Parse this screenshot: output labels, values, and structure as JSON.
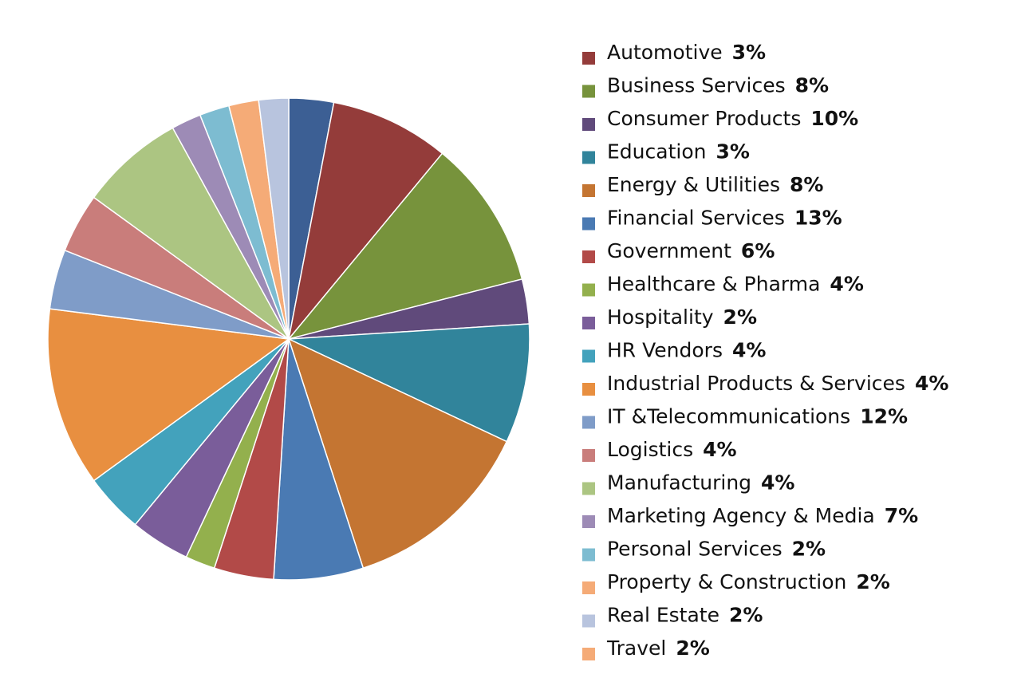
{
  "chart_data": {
    "type": "pie",
    "categories": [
      "Automotive",
      "Business Services",
      "Consumer Products",
      "Education",
      "Energy & Utilities",
      "Financial Services",
      "Government",
      "Healthcare & Pharma",
      "Hospitality",
      "HR Vendors",
      "Industrial Products & Services",
      "IT &Telecommunications",
      "Logistics",
      "Manufacturing",
      "Marketing Agency & Media",
      "Personal Services",
      "Property & Construction",
      "Real Estate",
      "Travel"
    ],
    "values": [
      3,
      8,
      10,
      3,
      8,
      13,
      6,
      4,
      2,
      4,
      4,
      12,
      4,
      4,
      7,
      2,
      2,
      2,
      2
    ],
    "value_labels": [
      "3%",
      "8%",
      "10%",
      "3%",
      "8%",
      "13%",
      "6%",
      "4%",
      "2%",
      "4%",
      "4%",
      "12%",
      "4%",
      "4%",
      "7%",
      "2%",
      "2%",
      "2%",
      "2%"
    ],
    "colors": [
      "#3c5f94",
      "#943c3a",
      "#77933c",
      "#604a7b",
      "#31849b",
      "#c47532",
      "#4a7ab3",
      "#b24a48",
      "#93b04d",
      "#7a5d9a",
      "#43a2bc",
      "#e88f40",
      "#7f9cc8",
      "#c97d7b",
      "#acc582",
      "#9d8bb6",
      "#7dbcd1",
      "#f5ab77",
      "#b8c4de"
    ],
    "legend_colors": [
      "#943c3a",
      "#77933c",
      "#604a7b",
      "#31849b",
      "#c47532",
      "#4a7ab3",
      "#b24a48",
      "#93b04d",
      "#7a5d9a",
      "#43a2bc",
      "#e88f40",
      "#7f9cc8",
      "#c97d7b",
      "#acc582",
      "#9d8bb6",
      "#7dbcd1",
      "#f5ab77",
      "#b8c4de",
      "#f5ab77"
    ]
  }
}
